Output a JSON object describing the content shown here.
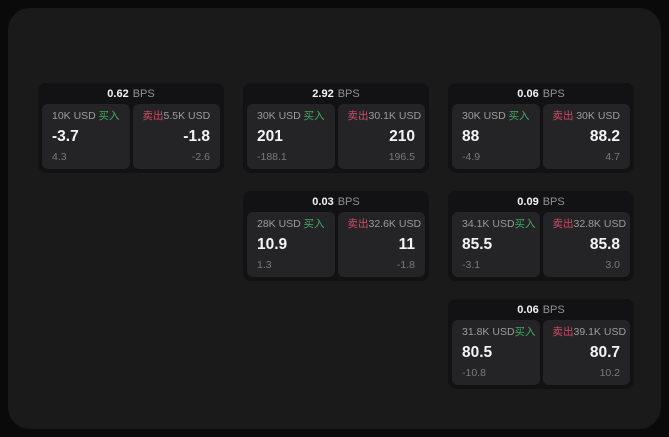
{
  "labels": {
    "bps_unit": "BPS",
    "buy": "买入",
    "sell": "卖出"
  },
  "colors": {
    "buy_green": "#3ead61",
    "sell_red": "#d04a66"
  },
  "cards": [
    {
      "bps": "0.62",
      "buy": {
        "size": "10K USD",
        "price": "-3.7",
        "delta": "4.3"
      },
      "sell": {
        "size": "5.5K USD",
        "price": "-1.8",
        "delta": "-2.6"
      }
    },
    {
      "bps": "2.92",
      "buy": {
        "size": "30K USD",
        "price": "201",
        "delta": "-188.1"
      },
      "sell": {
        "size": "30.1K USD",
        "price": "210",
        "delta": "196.5"
      }
    },
    {
      "bps": "0.06",
      "buy": {
        "size": "30K USD",
        "price": "88",
        "delta": "-4.9"
      },
      "sell": {
        "size": "30K USD",
        "price": "88.2",
        "delta": "4.7"
      }
    },
    {
      "bps": "0.03",
      "buy": {
        "size": "28K USD",
        "price": "10.9",
        "delta": "1.3"
      },
      "sell": {
        "size": "32.6K USD",
        "price": "11",
        "delta": "-1.8"
      }
    },
    {
      "bps": "0.09",
      "buy": {
        "size": "34.1K USD",
        "price": "85.5",
        "delta": "-3.1"
      },
      "sell": {
        "size": "32.8K USD",
        "price": "85.8",
        "delta": "3.0"
      }
    },
    {
      "bps": "0.06",
      "buy": {
        "size": "31.8K USD",
        "price": "80.5",
        "delta": "-10.8"
      },
      "sell": {
        "size": "39.1K USD",
        "price": "80.7",
        "delta": "10.2"
      }
    }
  ]
}
